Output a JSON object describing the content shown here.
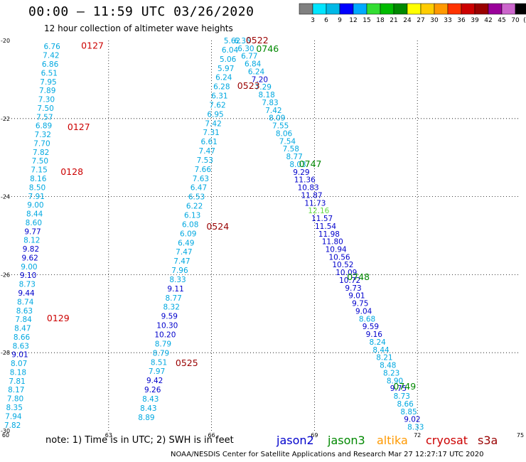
{
  "header": {
    "title": "00:00 – 11:59 UTC 03/26/2020",
    "subtitle": "12 hour collection of altimeter wave heights"
  },
  "colorbar": {
    "unit_label": "(ft)",
    "ticks": [
      "3",
      "6",
      "9",
      "12",
      "15",
      "18",
      "21",
      "24",
      "27",
      "30",
      "33",
      "36",
      "39",
      "42",
      "45",
      "70"
    ],
    "colors": [
      "#808080",
      "#00e5ff",
      "#00b8e6",
      "#0000ff",
      "#00aaff",
      "#33dd33",
      "#00bb00",
      "#008800",
      "#ffff00",
      "#ffcc00",
      "#ff9900",
      "#ff3300",
      "#cc0000",
      "#990000",
      "#990099",
      "#cc66cc",
      "#000000"
    ]
  },
  "axes": {
    "x_ticks": [
      "60",
      "63",
      "66",
      "69",
      "72",
      "75"
    ],
    "y_ticks": [
      "-20",
      "-22",
      "-24",
      "-26",
      "-28",
      "-30"
    ],
    "xlim": [
      60,
      75
    ],
    "ylim": [
      -30,
      -20
    ]
  },
  "satellites": {
    "colors": {
      "jason2": "#0000cc",
      "jason3": "#008800",
      "altika": "#ff9900",
      "cryosat": "#cc0000",
      "s3a": "#990000"
    },
    "labels": [
      {
        "name": "jason2",
        "text": "jason2"
      },
      {
        "name": "jason3",
        "text": "jason3"
      },
      {
        "name": "altika",
        "text": "altika"
      },
      {
        "name": "cryosat",
        "text": "cryosat"
      },
      {
        "name": "s3a",
        "text": "s3a"
      }
    ]
  },
  "time_labels": [
    {
      "text": "0127",
      "lon": 62.2,
      "lat": -20.12,
      "sat": "cryosat"
    },
    {
      "text": "0127",
      "lon": 61.8,
      "lat": -22.2,
      "sat": "cryosat"
    },
    {
      "text": "0128",
      "lon": 61.6,
      "lat": -23.35,
      "sat": "cryosat"
    },
    {
      "text": "0129",
      "lon": 61.2,
      "lat": -27.1,
      "sat": "cryosat"
    },
    {
      "text": "0522",
      "lon": 67.0,
      "lat": -19.98,
      "sat": "s3a"
    },
    {
      "text": "0523",
      "lon": 66.75,
      "lat": -21.15,
      "sat": "s3a"
    },
    {
      "text": "0524",
      "lon": 65.85,
      "lat": -24.75,
      "sat": "s3a"
    },
    {
      "text": "0525",
      "lon": 64.95,
      "lat": -28.25,
      "sat": "s3a"
    },
    {
      "text": "0746",
      "lon": 67.3,
      "lat": -20.2,
      "sat": "jason3"
    },
    {
      "text": "0747",
      "lon": 68.55,
      "lat": -23.15,
      "sat": "jason3"
    },
    {
      "text": "0748",
      "lon": 69.95,
      "lat": -26.05,
      "sat": "jason3"
    },
    {
      "text": "0749",
      "lon": 71.3,
      "lat": -28.85,
      "sat": "jason3"
    }
  ],
  "tracks": [
    {
      "sat": "cryosat",
      "lon0": 61.35,
      "lon1": 60.2,
      "lat0": -20.15,
      "lat1": -29.85,
      "values": [
        "6.76",
        "7.42",
        "6.86",
        "6.51",
        "7.95",
        "7.89",
        "7.30",
        "7.50",
        "7.57",
        "6.89",
        "7.32",
        "7.70",
        "7.82",
        "7.50",
        "7.15",
        "8.16",
        "8.50",
        "7.91",
        "9.00",
        "8.44",
        "8.60",
        "9.77",
        "8.12",
        "9.82",
        "9.62",
        "9.00",
        "9.10",
        "8.73",
        "9.44",
        "8.74",
        "8.63",
        "7.84",
        "8.47",
        "8.66",
        "8.63",
        "9.01",
        "8.07",
        "8.18",
        "7.81",
        "8.17",
        "7.80",
        "8.35",
        "7.94",
        "7.82"
      ],
      "colors": [
        "c",
        "c",
        "c",
        "c",
        "c",
        "c",
        "c",
        "c",
        "c",
        "c",
        "c",
        "c",
        "c",
        "c",
        "c",
        "c",
        "c",
        "c",
        "c",
        "c",
        "c",
        "b",
        "c",
        "b",
        "b",
        "c",
        "b",
        "c",
        "b",
        "c",
        "c",
        "c",
        "c",
        "c",
        "c",
        "b",
        "c",
        "c",
        "c",
        "c",
        "c",
        "c",
        "c",
        "c"
      ]
    },
    {
      "sat": "s3a",
      "lon0": 66.6,
      "lon1": 64.1,
      "lat0": -20.0,
      "lat1": -29.65,
      "values": [
        "5.62",
        "6.04",
        "5.06",
        "5.97",
        "6.24",
        "6.28",
        "6.31",
        "7.62",
        "6.95",
        "7.42",
        "7.31",
        "6.61",
        "7.47",
        "7.53",
        "7.66",
        "7.63",
        "6.47",
        "6.53",
        "6.22",
        "6.13",
        "6.08",
        "6.09",
        "6.49",
        "7.47",
        "7.47",
        "7.96",
        "8.33",
        "9.11",
        "8.77",
        "8.32",
        "9.59",
        "10.30",
        "10.20",
        "8.79",
        "8.79",
        "8.51",
        "7.97",
        "9.42",
        "9.26",
        "8.43",
        "8.43",
        "8.89"
      ],
      "colors": [
        "c",
        "c",
        "c",
        "c",
        "c",
        "c",
        "c",
        "c",
        "c",
        "c",
        "c",
        "c",
        "c",
        "c",
        "c",
        "c",
        "c",
        "c",
        "c",
        "c",
        "c",
        "c",
        "c",
        "c",
        "c",
        "c",
        "c",
        "b",
        "c",
        "c",
        "b",
        "b",
        "b",
        "c",
        "c",
        "c",
        "c",
        "b",
        "b",
        "c",
        "c",
        "c"
      ]
    },
    {
      "sat": "jason3",
      "lon0": 66.9,
      "lon1": 71.95,
      "lat0": -20.0,
      "lat1": -29.9,
      "values": [
        "6.35",
        "6.30",
        "6.77",
        "6.84",
        "6.24",
        "7.20",
        "7.29",
        "8.18",
        "7.83",
        "7.42",
        "8.09",
        "7.55",
        "8.06",
        "7.54",
        "7.58",
        "8.77",
        "8.03",
        "9.29",
        "11.36",
        "10.83",
        "11.87",
        "11.73",
        "12.16",
        "11.57",
        "11.54",
        "11.98",
        "11.80",
        "10.94",
        "10.56",
        "10.52",
        "10.09",
        "10.72",
        "9.73",
        "9.01",
        "9.75",
        "9.04",
        "8.68",
        "9.59",
        "9.16",
        "8.24",
        "8.44",
        "8.21",
        "8.48",
        "8.23",
        "8.90",
        "9.75",
        "8.73",
        "8.66",
        "8.85",
        "9.02",
        "8.33"
      ],
      "colors": [
        "c",
        "c",
        "c",
        "c",
        "c",
        "b",
        "c",
        "c",
        "c",
        "c",
        "c",
        "c",
        "c",
        "c",
        "c",
        "c",
        "c",
        "b",
        "b",
        "b",
        "b",
        "b",
        "g",
        "b",
        "b",
        "b",
        "b",
        "b",
        "b",
        "b",
        "b",
        "b",
        "b",
        "b",
        "b",
        "b",
        "c",
        "b",
        "b",
        "c",
        "c",
        "c",
        "c",
        "c",
        "c",
        "b",
        "c",
        "c",
        "c",
        "b",
        "c"
      ]
    }
  ],
  "note_text": "note:  1) Time is in UTC;  2) SWH is in feet",
  "credit_text": "NOAA/NESDIS Center for Satellite Applications and Research    Mar 27 12:27:17 UTC 2020"
}
